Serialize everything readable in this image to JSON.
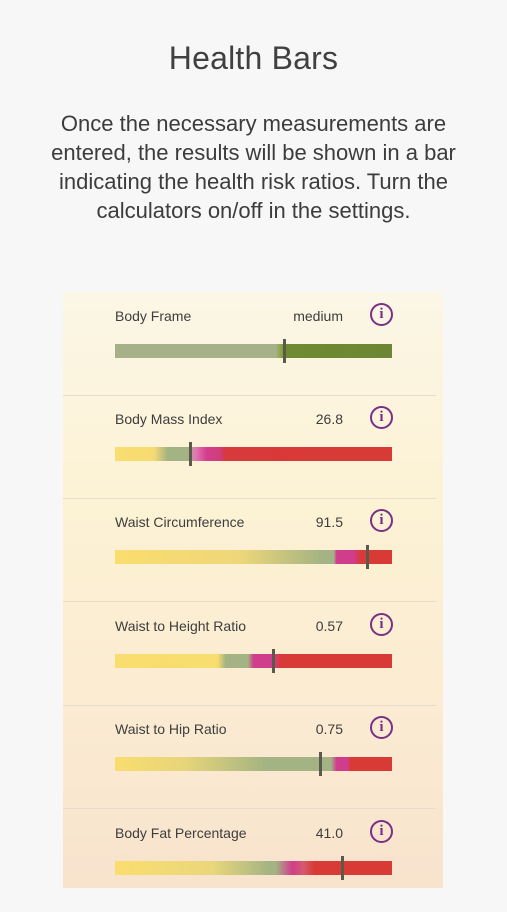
{
  "page": {
    "title": "Health Bars",
    "description": "Once the necessary measurements are entered, the results will be shown in a bar indicating the health risk ratios. Turn the calculators on/off in the settings."
  },
  "info_icon_glyph": "i",
  "metrics": [
    {
      "label": "Body Frame",
      "value": "medium",
      "marker_fraction": 0.61
    },
    {
      "label": "Body Mass Index",
      "value": "26.8",
      "marker_fraction": 0.27
    },
    {
      "label": "Waist Circumference",
      "value": "91.5",
      "marker_fraction": 0.91
    },
    {
      "label": "Waist to Height Ratio",
      "value": "0.57",
      "marker_fraction": 0.57
    },
    {
      "label": "Waist to Hip Ratio",
      "value": "0.75",
      "marker_fraction": 0.74
    },
    {
      "label": "Body Fat Percentage",
      "value": "41.0",
      "marker_fraction": 0.82
    }
  ],
  "colors": {
    "yellow": "#f9dd6e",
    "green": "#a3b383",
    "dark_green": "#6e8a35",
    "magenta": "#d03d8c",
    "red": "#d83a35",
    "info": "#7a2f86"
  }
}
